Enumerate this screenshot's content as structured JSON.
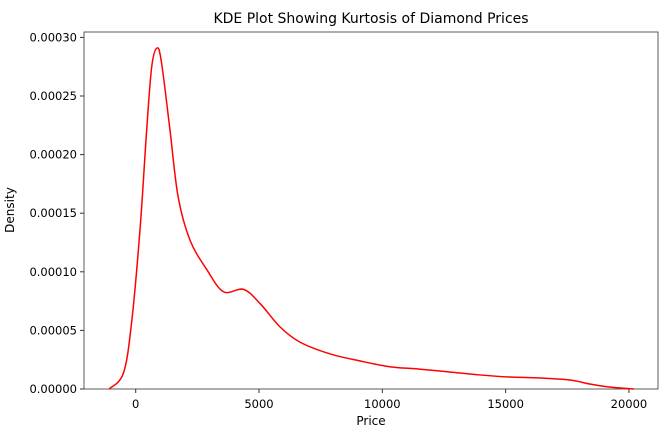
{
  "chart_data": {
    "type": "line",
    "title": "KDE Plot Showing Kurtosis of Diamond Prices",
    "xlabel": "Price",
    "ylabel": "Density",
    "xlim": [
      -2100,
      21100
    ],
    "ylim": [
      0,
      0.000307
    ],
    "xticks": [
      0,
      5000,
      10000,
      15000,
      20000
    ],
    "xtick_labels": [
      "0",
      "5000",
      "10000",
      "15000",
      "20000"
    ],
    "yticks": [
      0,
      5e-05,
      0.0001,
      0.00015,
      0.0002,
      0.00025,
      0.0003
    ],
    "ytick_labels": [
      "0.00000",
      "0.00005",
      "0.00010",
      "0.00015",
      "0.00020",
      "0.00025",
      "0.00030"
    ],
    "grid": false,
    "color": "#ff0000",
    "series": [
      {
        "x": [
          -1080,
          -500,
          -170,
          175,
          445,
          650,
          870,
          1050,
          1390,
          1720,
          2200,
          2880,
          3560,
          4370,
          5040,
          5850,
          6660,
          7870,
          9080,
          10300,
          11500,
          12730,
          13950,
          15170,
          16380,
          17600,
          18400,
          19200,
          20200
        ],
        "y": [
          0,
          1.34e-05,
          5.6e-05,
          0.000136,
          0.000221,
          0.000275,
          0.000291,
          0.000278,
          0.000221,
          0.000164,
          0.000127,
          0.000102,
          8.3e-05,
          8.5e-05,
          7.3e-05,
          5.3e-05,
          4e-05,
          3e-05,
          2.4e-05,
          1.9e-05,
          1.7e-05,
          1.45e-05,
          1.2e-05,
          1.02e-05,
          9.4e-06,
          7.7e-06,
          4.3e-06,
          1.7e-06,
          0
        ]
      }
    ]
  }
}
